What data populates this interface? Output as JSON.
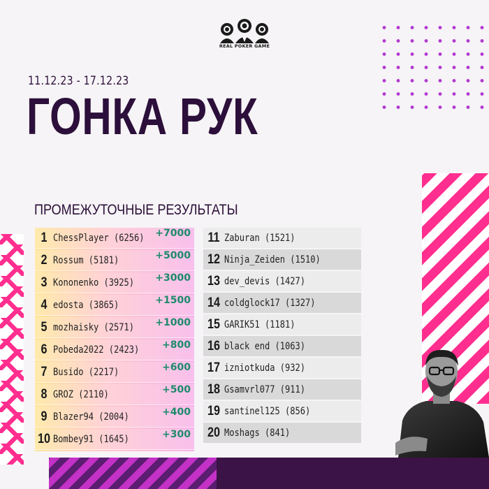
{
  "logo": {
    "brand": "REAL POKER GAME",
    "icon": "poker-players-logo-icon"
  },
  "header": {
    "date_range": "11.12.23 - 17.12.23",
    "title": "ГОНКА РУК",
    "subtitle": "ПРОМЕЖУТОЧНЫЕ РЕЗУЛЬТАТЫ"
  },
  "leaderboard": {
    "left": [
      {
        "rank": "1",
        "name": "ChessPlayer (6256)",
        "bonus": "+7000"
      },
      {
        "rank": "2",
        "name": "Rossum (5181)",
        "bonus": "+5000"
      },
      {
        "rank": "3",
        "name": "Kononenko (3925)",
        "bonus": "+3000"
      },
      {
        "rank": "4",
        "name": "edosta (3865)",
        "bonus": "+1500"
      },
      {
        "rank": "5",
        "name": "mozhaisky (2571)",
        "bonus": "+1000"
      },
      {
        "rank": "6",
        "name": "Pobeda2022 (2423)",
        "bonus": "+800"
      },
      {
        "rank": "7",
        "name": "Busido (2217)",
        "bonus": "+600"
      },
      {
        "rank": "8",
        "name": "GROZ (2110)",
        "bonus": "+500"
      },
      {
        "rank": "9",
        "name": "Blazer94 (2004)",
        "bonus": "+400"
      },
      {
        "rank": "10",
        "name": "Bombey91 (1645)",
        "bonus": "+300"
      }
    ],
    "right": [
      {
        "rank": "11",
        "name": "Zaburan (1521)"
      },
      {
        "rank": "12",
        "name": "Ninja_Zeiden (1510)"
      },
      {
        "rank": "13",
        "name": "dev_devis (1427)"
      },
      {
        "rank": "14",
        "name": "coldglock17 (1327)"
      },
      {
        "rank": "15",
        "name": "GARIK51 (1181)"
      },
      {
        "rank": "16",
        "name": "black end (1063)"
      },
      {
        "rank": "17",
        "name": "izniotkuda (932)"
      },
      {
        "rank": "18",
        "name": "Gsamvrl077 (911)"
      },
      {
        "rank": "19",
        "name": "santinel125 (856)"
      },
      {
        "rank": "20",
        "name": "Moshags (841)"
      }
    ]
  },
  "colors": {
    "title": "#2c0f3a",
    "accent_pink": "#ff2e8f",
    "accent_purple": "#b23ad0",
    "bonus_green": "#1e8a6a"
  }
}
